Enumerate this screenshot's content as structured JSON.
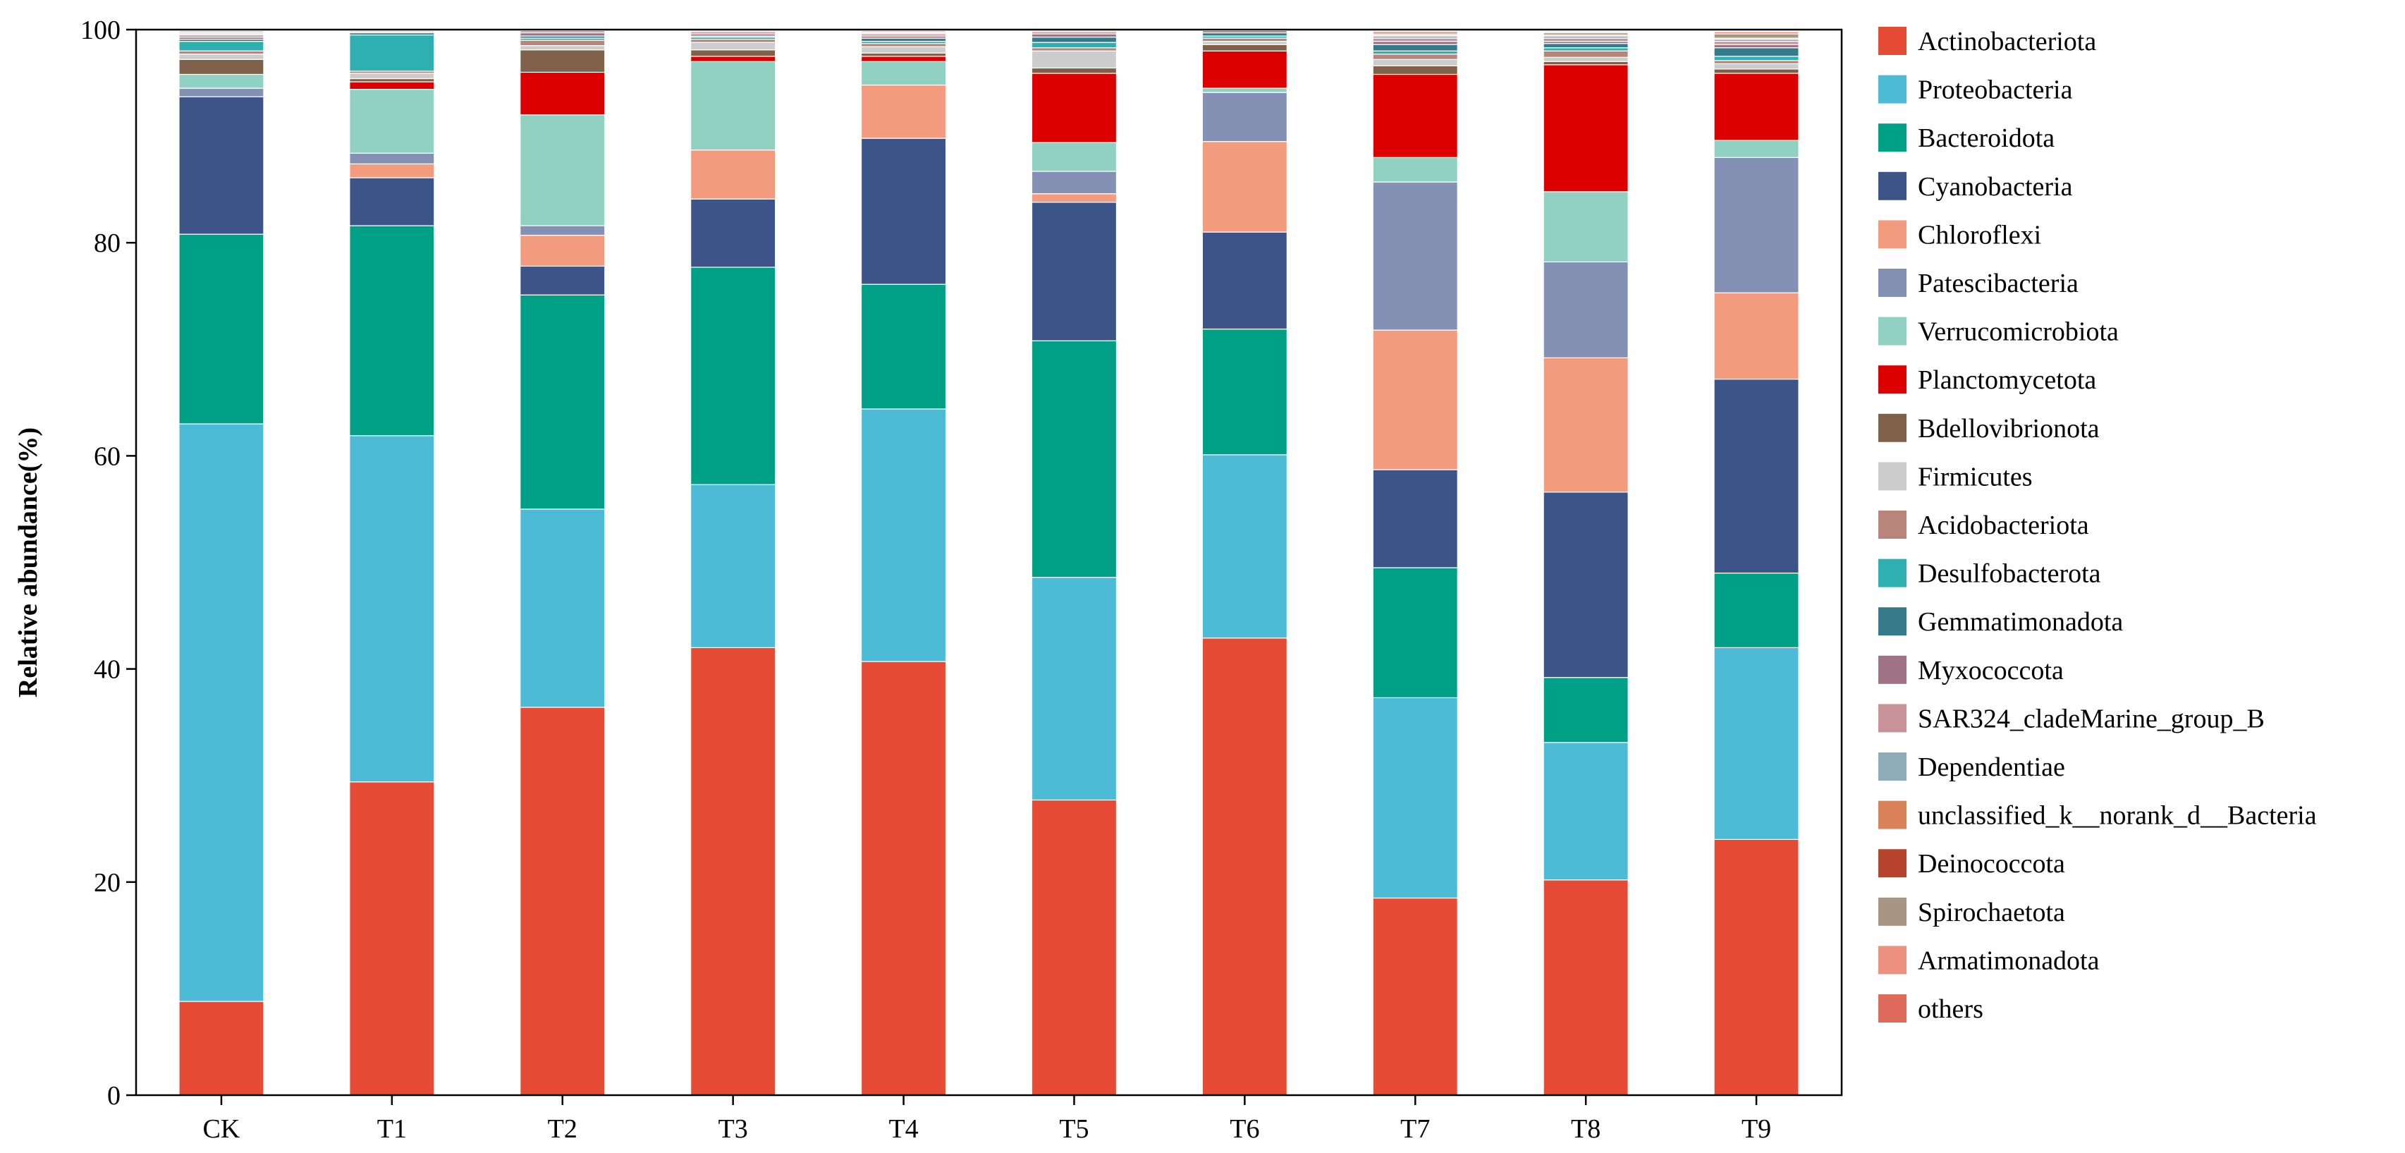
{
  "chart_data": {
    "type": "stacked-bar",
    "title": "",
    "xlabel": "",
    "ylabel": "Relative abundance(%)",
    "ylim": [
      0,
      100
    ],
    "yticks": [
      "0",
      "20",
      "40",
      "60",
      "80",
      "100"
    ],
    "categories": [
      "CK",
      "T1",
      "T2",
      "T3",
      "T4",
      "T5",
      "T6",
      "T7",
      "T8",
      "T9"
    ],
    "series": [
      {
        "name": "Actinobacteriota",
        "color": "#E64B35",
        "values": [
          8.8,
          29.4,
          36.4,
          42.0,
          40.7,
          27.7,
          42.9,
          18.5,
          20.2,
          24.0
        ]
      },
      {
        "name": "Proteobacteria",
        "color": "#4DBBD5",
        "values": [
          54.2,
          32.5,
          18.6,
          15.3,
          23.7,
          20.9,
          17.2,
          18.8,
          12.9,
          18.0
        ]
      },
      {
        "name": "Bacteroidota",
        "color": "#00A087",
        "values": [
          17.8,
          19.7,
          20.1,
          20.4,
          11.7,
          22.2,
          11.8,
          12.2,
          6.1,
          7.0
        ]
      },
      {
        "name": "Cyanobacteria",
        "color": "#3C5488",
        "values": [
          12.9,
          4.5,
          2.7,
          6.4,
          13.7,
          13.0,
          9.1,
          9.2,
          17.4,
          18.2
        ]
      },
      {
        "name": "Chloroflexi",
        "color": "#F39B7F",
        "values": [
          0.0,
          1.3,
          2.9,
          4.6,
          5.0,
          0.8,
          8.5,
          13.1,
          12.6,
          8.1
        ]
      },
      {
        "name": "Patescibacteria",
        "color": "#8491B4",
        "values": [
          0.8,
          1.0,
          0.9,
          0.0,
          0.0,
          2.1,
          4.6,
          13.9,
          9.0,
          12.7
        ]
      },
      {
        "name": "Verrucomicrobiota",
        "color": "#91D1C2",
        "values": [
          1.3,
          6.0,
          10.4,
          8.3,
          2.2,
          2.7,
          0.4,
          2.3,
          6.6,
          1.6
        ]
      },
      {
        "name": "Planctomycetota",
        "color": "#DC0000",
        "values": [
          0.0,
          0.7,
          4.0,
          0.5,
          0.5,
          6.5,
          3.5,
          7.8,
          11.9,
          6.3
        ]
      },
      {
        "name": "Bdellovibrionota",
        "color": "#7E6148",
        "values": [
          1.4,
          0.3,
          2.1,
          0.6,
          0.3,
          0.5,
          0.6,
          0.8,
          0.3,
          0.4
        ]
      },
      {
        "name": "Firmicutes",
        "color": "#CCCCCC",
        "values": [
          0.5,
          0.5,
          0.4,
          0.7,
          0.6,
          1.6,
          0.3,
          0.6,
          0.4,
          0.5
        ]
      },
      {
        "name": "Acidobacteriota",
        "color": "#B9857A",
        "values": [
          0.3,
          0.2,
          0.5,
          0.3,
          0.3,
          0.3,
          0.3,
          0.5,
          0.6,
          0.3
        ]
      },
      {
        "name": "Desulfobacterota",
        "color": "#2FAFAF",
        "values": [
          0.9,
          3.4,
          0.2,
          0.2,
          0.2,
          0.5,
          0.2,
          0.3,
          0.3,
          0.4
        ]
      },
      {
        "name": "Gemmatimonadota",
        "color": "#35798A",
        "values": [
          0.2,
          0.2,
          0.2,
          0.1,
          0.3,
          0.5,
          0.3,
          0.6,
          0.4,
          0.8
        ]
      },
      {
        "name": "Myxococcota",
        "color": "#A07285",
        "values": [
          0.2,
          0.1,
          0.3,
          0.2,
          0.2,
          0.3,
          0.2,
          0.3,
          0.2,
          0.3
        ]
      },
      {
        "name": "SAR324_cladeMarine_group_B",
        "color": "#C79399",
        "values": [
          0.2,
          0.1,
          0.2,
          0.2,
          0.2,
          0.2,
          0.1,
          0.3,
          0.3,
          0.3
        ]
      },
      {
        "name": "Dependentiae",
        "color": "#8EADB8",
        "values": [
          0.1,
          0.1,
          0.1,
          0.1,
          0.1,
          0.1,
          0.1,
          0.2,
          0.2,
          0.2
        ]
      },
      {
        "name": "unclassified_k__norank_d__Bacteria",
        "color": "#D98159",
        "values": [
          0.1,
          0.0,
          0.0,
          0.1,
          0.1,
          0.1,
          0.0,
          0.1,
          0.1,
          0.1
        ]
      },
      {
        "name": "Deinococcota",
        "color": "#B5432E",
        "values": [
          0.1,
          0.0,
          0.0,
          0.0,
          0.1,
          0.0,
          0.0,
          0.1,
          0.0,
          0.0
        ]
      },
      {
        "name": "Spirochaetota",
        "color": "#A89584",
        "values": [
          0.1,
          0.0,
          0.0,
          0.0,
          0.1,
          0.0,
          0.0,
          0.2,
          0.2,
          0.4
        ]
      },
      {
        "name": "Armatimonadota",
        "color": "#EE9080",
        "values": [
          0.0,
          0.0,
          0.0,
          0.0,
          0.0,
          0.0,
          0.0,
          0.1,
          0.1,
          0.2
        ]
      },
      {
        "name": "others",
        "color": "#DE6B5C",
        "values": [
          0.0,
          0.0,
          0.0,
          0.0,
          0.0,
          0.0,
          0.0,
          0.0,
          0.0,
          0.0
        ]
      }
    ],
    "legend_position": "right"
  }
}
